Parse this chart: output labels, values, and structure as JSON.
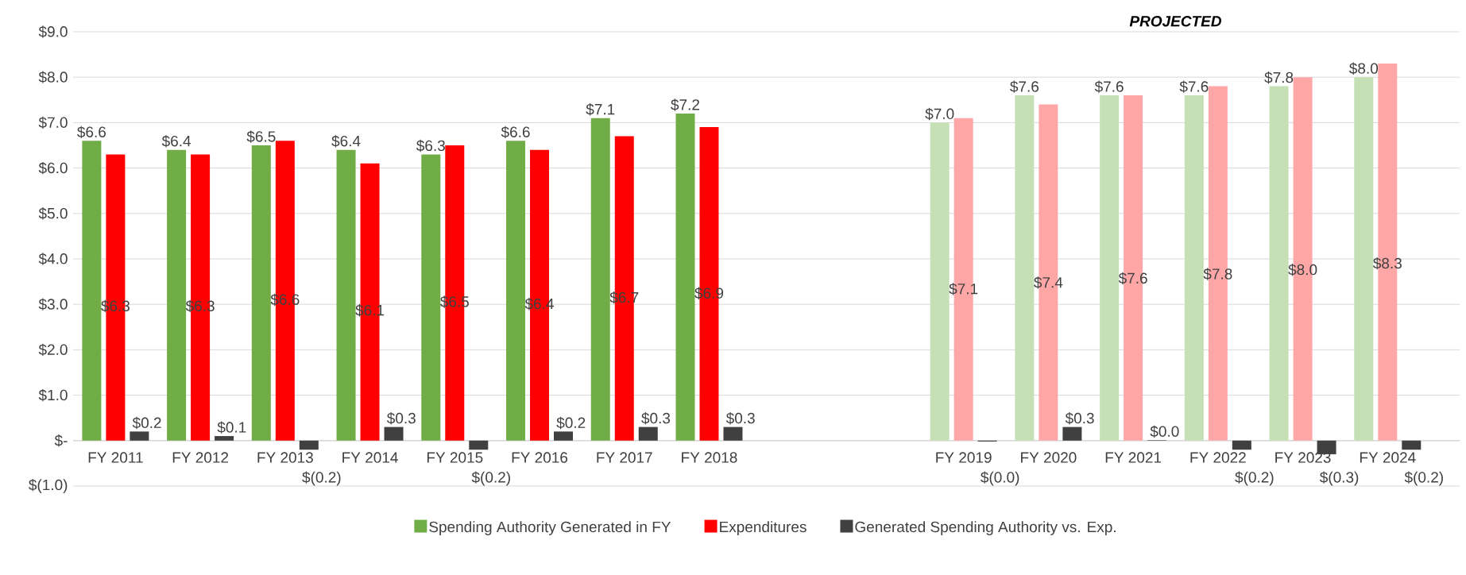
{
  "chart_data": {
    "type": "bar",
    "categories": [
      "FY 2011",
      "FY 2012",
      "FY 2013",
      "FY 2014",
      "FY 2015",
      "FY 2016",
      "FY 2017",
      "FY 2018",
      null,
      null,
      "FY 2019",
      "FY 2020",
      "FY 2021",
      "FY 2022",
      "FY 2023",
      "FY 2024"
    ],
    "series": [
      {
        "name": "Spending Authority Generated in FY",
        "color": "#70ad47",
        "colors": [
          "#70ad47",
          "#70ad47",
          "#70ad47",
          "#70ad47",
          "#70ad47",
          "#70ad47",
          "#70ad47",
          "#70ad47",
          null,
          null,
          "#c5e0b4",
          "#c5e0b4",
          "#c5e0b4",
          "#c5e0b4",
          "#c5e0b4",
          "#c5e0b4"
        ],
        "values": [
          6.6,
          6.4,
          6.5,
          6.4,
          6.3,
          6.6,
          7.1,
          7.2,
          null,
          null,
          7.0,
          7.6,
          7.6,
          7.6,
          7.8,
          8.0
        ],
        "value_labels": [
          "$6.6",
          "$6.4",
          "$6.5",
          "$6.4",
          "$6.3",
          "$6.6",
          "$7.1",
          "$7.2",
          null,
          null,
          "$7.0",
          "$7.6",
          "$7.6",
          "$7.6",
          "$7.8",
          "$8.0"
        ]
      },
      {
        "name": "Expenditures",
        "color": "#ff0000",
        "colors": [
          "#ff0000",
          "#ff0000",
          "#ff0000",
          "#ff0000",
          "#ff0000",
          "#ff0000",
          "#ff0000",
          "#ff0000",
          null,
          null,
          "#ffa6a6",
          "#ffa6a6",
          "#ffa6a6",
          "#ffa6a6",
          "#ffa6a6",
          "#ffa6a6"
        ],
        "values": [
          6.3,
          6.3,
          6.6,
          6.1,
          6.5,
          6.4,
          6.7,
          6.9,
          null,
          null,
          7.1,
          7.4,
          7.6,
          7.8,
          8.0,
          8.3
        ],
        "value_labels": [
          "$6.3",
          "$6.3",
          "$6.6",
          "$6.1",
          "$6.5",
          "$6.4",
          "$6.7",
          "$6.9",
          null,
          null,
          "$7.1",
          "$7.4",
          "$7.6",
          "$7.8",
          "$8.0",
          "$8.3"
        ]
      },
      {
        "name": "Generated Spending Authority vs. Exp.",
        "color": "#404040",
        "values": [
          0.2,
          0.1,
          -0.2,
          0.3,
          -0.2,
          0.2,
          0.3,
          0.3,
          null,
          null,
          -0.02,
          0.3,
          0.01,
          -0.2,
          -0.3,
          -0.2
        ],
        "value_labels": [
          "$0.2",
          "$0.1",
          "$(0.2)",
          "$0.3",
          "$(0.2)",
          "$0.2",
          "$0.3",
          "$0.3",
          null,
          null,
          "$(0.0)",
          "$0.3",
          "$0.0",
          "$(0.2)",
          "$(0.3)",
          "$(0.2)"
        ]
      }
    ],
    "ylim": [
      -1,
      9
    ],
    "yticks": [
      {
        "value": -1,
        "label": "$(1.0)"
      },
      {
        "value": 0,
        "label": "$-"
      },
      {
        "value": 1,
        "label": "$1.0"
      },
      {
        "value": 2,
        "label": "$2.0"
      },
      {
        "value": 3,
        "label": "$3.0"
      },
      {
        "value": 4,
        "label": "$4.0"
      },
      {
        "value": 5,
        "label": "$5.0"
      },
      {
        "value": 6,
        "label": "$6.0"
      },
      {
        "value": 7,
        "label": "$7.0"
      },
      {
        "value": 8,
        "label": "$8.0"
      },
      {
        "value": 9,
        "label": "$9.0"
      }
    ],
    "grid": "y",
    "legend": "bottom",
    "annotations": [
      "PROJECTED"
    ]
  }
}
